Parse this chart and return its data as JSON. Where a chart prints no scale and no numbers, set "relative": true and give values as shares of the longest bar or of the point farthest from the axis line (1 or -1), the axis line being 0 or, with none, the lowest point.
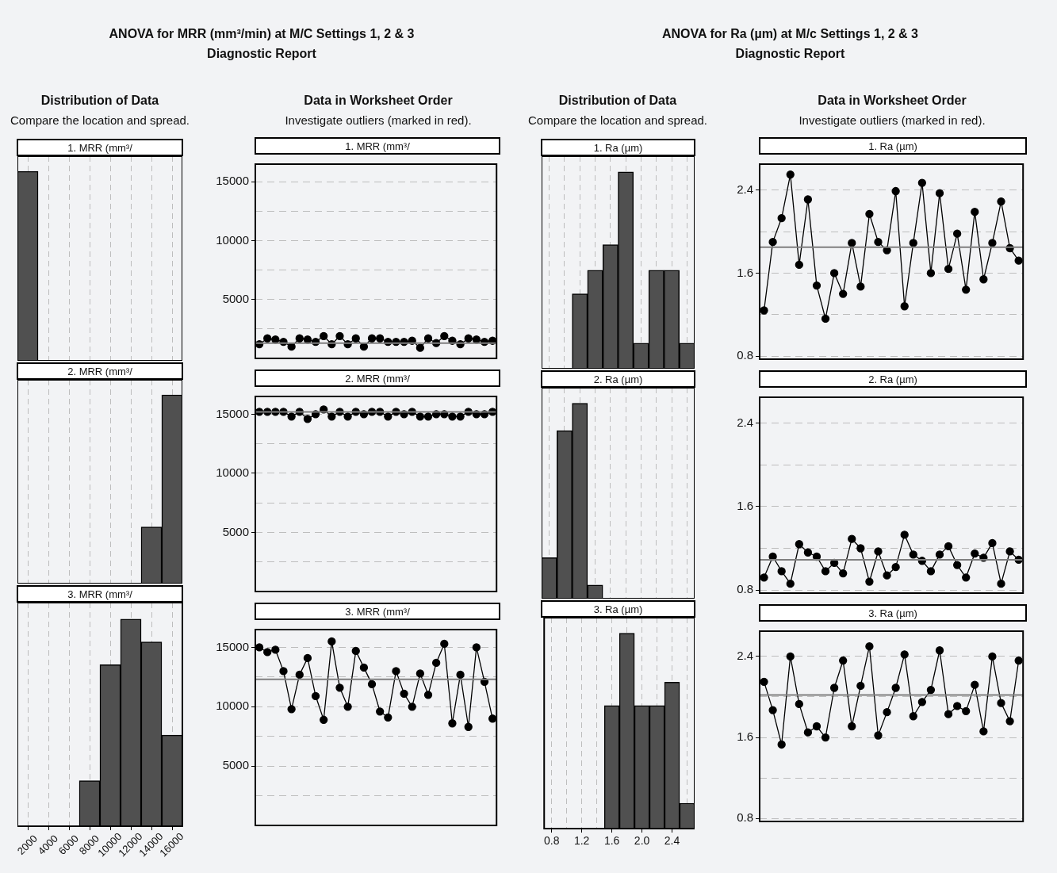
{
  "chart_data": [
    {
      "type": "other",
      "title": "ANOVA for MRR (mm³/min) at M/C Settings 1, 2 & 3",
      "subtitle": "Diagnostic Report",
      "annotations": [
        "Distribution of Data",
        "Compare the location and spread.",
        "Data in Worksheet Order",
        "Investigate outliers (marked in red)."
      ]
    },
    {
      "type": "other",
      "title": "ANOVA for Ra (µm) at M/c Settings 1, 2 & 3",
      "subtitle": "Diagnostic Report",
      "annotations": [
        "Distribution of Data",
        "Compare the location and spread.",
        "Data in Worksheet Order",
        "Investigate outliers (marked in red)."
      ]
    },
    {
      "type": "bar",
      "title": "1. MRR (mm³/",
      "relative": true,
      "color": "#505050",
      "grid": "x",
      "tick_labels": false,
      "categories": [
        "2000",
        "4000",
        "6000",
        "8000",
        "10000",
        "12000",
        "14000",
        "16000"
      ],
      "values": [
        1,
        0,
        0,
        0,
        0,
        0,
        0,
        0
      ]
    },
    {
      "type": "bar",
      "title": "2. MRR (mm³/",
      "relative": true,
      "color": "#505050",
      "grid": "x",
      "tick_labels": false,
      "categories": [
        "2000",
        "4000",
        "6000",
        "8000",
        "10000",
        "12000",
        "14000",
        "16000"
      ],
      "values": [
        0,
        0,
        0,
        0,
        0,
        0,
        0.3,
        1
      ]
    },
    {
      "type": "bar",
      "title": "3. MRR (mm³/",
      "relative": true,
      "color": "#505050",
      "grid": "x",
      "tick_labels": "x",
      "categories": [
        "2000",
        "4000",
        "6000",
        "8000",
        "10000",
        "12000",
        "14000",
        "16000"
      ],
      "values": [
        0,
        0,
        0,
        0.22,
        0.78,
        1,
        0.89,
        0.44
      ]
    },
    {
      "type": "line",
      "title": "1. MRR (mm³/",
      "color": "#000000",
      "marker": "circle",
      "line_style": "solid",
      "grid": "y",
      "tick_labels": "y",
      "ylim": [
        0,
        16500
      ],
      "yticks": [
        {
          "value": 2500,
          "label": null
        },
        5000,
        {
          "value": 7500,
          "label": null
        },
        10000,
        {
          "value": 12500,
          "label": null
        },
        15000
      ],
      "ref_lines": [
        {
          "axis": "y",
          "value": 1300,
          "color": "#7f7f7f"
        }
      ],
      "categories": [
        null,
        null,
        null,
        null,
        null,
        null,
        null,
        null,
        null,
        null,
        null,
        null,
        null,
        null,
        null,
        null,
        null,
        null,
        null,
        null,
        null,
        null,
        null,
        null,
        null,
        null,
        null,
        null,
        null,
        null
      ],
      "values": [
        1200,
        1700,
        1600,
        1400,
        1000,
        1700,
        1600,
        1400,
        1900,
        1200,
        1900,
        1200,
        1700,
        1000,
        1700,
        1700,
        1400,
        1400,
        1400,
        1500,
        900,
        1700,
        1300,
        1900,
        1500,
        1200,
        1700,
        1600,
        1400,
        1500
      ]
    },
    {
      "type": "line",
      "title": "2. MRR (mm³/",
      "color": "#000000",
      "marker": "circle",
      "line_style": "solid",
      "grid": "y",
      "tick_labels": "y",
      "ylim": [
        0,
        16500
      ],
      "yticks": [
        {
          "value": 2500,
          "label": null
        },
        5000,
        {
          "value": 7500,
          "label": null
        },
        10000,
        {
          "value": 12500,
          "label": null
        },
        15000
      ],
      "ref_lines": [
        {
          "axis": "y",
          "value": 15200,
          "color": "#7f7f7f"
        }
      ],
      "categories": [
        null,
        null,
        null,
        null,
        null,
        null,
        null,
        null,
        null,
        null,
        null,
        null,
        null,
        null,
        null,
        null,
        null,
        null,
        null,
        null,
        null,
        null,
        null,
        null,
        null,
        null,
        null,
        null,
        null,
        null
      ],
      "values": [
        15200,
        15200,
        15200,
        15200,
        14800,
        15200,
        14600,
        15000,
        15400,
        14800,
        15200,
        14800,
        15200,
        15000,
        15200,
        15200,
        14800,
        15200,
        15000,
        15200,
        14800,
        14800,
        15000,
        15000,
        14800,
        14800,
        15200,
        15000,
        15000,
        15200
      ]
    },
    {
      "type": "line",
      "title": "3. MRR (mm³/",
      "color": "#000000",
      "marker": "circle",
      "line_style": "solid",
      "grid": "y",
      "tick_labels": "y",
      "ylim": [
        0,
        16500
      ],
      "yticks": [
        {
          "value": 2500,
          "label": null
        },
        5000,
        {
          "value": 7500,
          "label": null
        },
        10000,
        {
          "value": 12500,
          "label": null
        },
        15000
      ],
      "ref_lines": [
        {
          "axis": "y",
          "value": 12300,
          "color": "#7f7f7f"
        }
      ],
      "categories": [
        null,
        null,
        null,
        null,
        null,
        null,
        null,
        null,
        null,
        null,
        null,
        null,
        null,
        null,
        null,
        null,
        null,
        null,
        null,
        null,
        null,
        null,
        null,
        null,
        null,
        null,
        null,
        null,
        null,
        null
      ],
      "values": [
        15000,
        14600,
        14800,
        13000,
        9800,
        12700,
        14100,
        10900,
        8900,
        15500,
        11600,
        10000,
        14700,
        13300,
        11900,
        9600,
        9100,
        13000,
        11100,
        10000,
        12800,
        11000,
        13700,
        15300,
        8600,
        12700,
        8300,
        15000,
        12100,
        9000
      ]
    },
    {
      "type": "bar",
      "title": "1. Ra (µm)",
      "relative": true,
      "color": "#505050",
      "grid": "x",
      "tick_labels": false,
      "categories": [
        "0.8",
        null,
        "1.2",
        null,
        "1.6",
        null,
        "2.0",
        null,
        "2.4",
        null
      ],
      "values": [
        0,
        0,
        0.38,
        0.5,
        0.63,
        1,
        0.13,
        0.5,
        0.5,
        0.13
      ]
    },
    {
      "type": "bar",
      "title": "2. Ra (µm)",
      "relative": true,
      "color": "#505050",
      "grid": "x",
      "tick_labels": false,
      "categories": [
        "0.8",
        null,
        "1.2",
        null,
        "1.6",
        null,
        "2.0",
        null,
        "2.4",
        null
      ],
      "values": [
        0.21,
        0.86,
        1,
        0.07,
        0,
        0,
        0,
        0,
        0,
        0
      ]
    },
    {
      "type": "bar",
      "title": "3. Ra (µm)",
      "relative": true,
      "color": "#505050",
      "grid": "x",
      "tick_labels": "x",
      "categories": [
        "0.8",
        null,
        "1.2",
        null,
        "1.6",
        null,
        "2.0",
        null,
        "2.4",
        null
      ],
      "values": [
        0,
        0,
        0,
        0,
        0.63,
        1,
        0.63,
        0.63,
        0.75,
        0.13
      ]
    },
    {
      "type": "line",
      "title": "1. Ra (µm)",
      "color": "#000000",
      "marker": "circle",
      "line_style": "solid",
      "grid": "y",
      "tick_labels": "y",
      "ylim": [
        0.77,
        2.65
      ],
      "yticks": [
        0.8,
        {
          "value": 1.2,
          "label": null
        },
        1.6,
        {
          "value": 2,
          "label": null
        },
        2.4
      ],
      "ref_lines": [
        {
          "axis": "y",
          "value": 1.85,
          "color": "#7f7f7f"
        }
      ],
      "categories": [
        null,
        null,
        null,
        null,
        null,
        null,
        null,
        null,
        null,
        null,
        null,
        null,
        null,
        null,
        null,
        null,
        null,
        null,
        null,
        null,
        null,
        null,
        null,
        null,
        null,
        null,
        null,
        null,
        null,
        null
      ],
      "values": [
        1.24,
        1.9,
        2.13,
        2.55,
        1.68,
        2.31,
        1.48,
        1.16,
        1.6,
        1.4,
        1.89,
        1.47,
        2.17,
        1.9,
        1.82,
        2.39,
        1.28,
        1.89,
        2.47,
        1.6,
        2.37,
        1.64,
        1.98,
        1.44,
        2.19,
        1.54,
        1.89,
        2.29,
        1.84,
        1.72
      ]
    },
    {
      "type": "line",
      "title": "2. Ra (µm)",
      "color": "#000000",
      "marker": "circle",
      "line_style": "solid",
      "grid": "y",
      "tick_labels": "y",
      "ylim": [
        0.77,
        2.65
      ],
      "yticks": [
        0.8,
        {
          "value": 1.2,
          "label": null
        },
        1.6,
        {
          "value": 2,
          "label": null
        },
        2.4
      ],
      "ref_lines": [
        {
          "axis": "y",
          "value": 1.09,
          "color": "#7f7f7f"
        }
      ],
      "categories": [
        null,
        null,
        null,
        null,
        null,
        null,
        null,
        null,
        null,
        null,
        null,
        null,
        null,
        null,
        null,
        null,
        null,
        null,
        null,
        null,
        null,
        null,
        null,
        null,
        null,
        null,
        null,
        null,
        null,
        null
      ],
      "values": [
        0.92,
        1.12,
        0.98,
        0.86,
        1.24,
        1.16,
        1.12,
        0.98,
        1.06,
        0.96,
        1.29,
        1.2,
        0.88,
        1.17,
        0.94,
        1.02,
        1.33,
        1.14,
        1.08,
        0.98,
        1.14,
        1.22,
        1.04,
        0.92,
        1.15,
        1.11,
        1.25,
        0.86,
        1.17,
        1.09
      ]
    },
    {
      "type": "line",
      "title": "3. Ra (µm)",
      "color": "#000000",
      "marker": "circle",
      "line_style": "solid",
      "grid": "y",
      "tick_labels": "y",
      "ylim": [
        0.77,
        2.65
      ],
      "yticks": [
        0.8,
        {
          "value": 1.2,
          "label": null
        },
        1.6,
        {
          "value": 2,
          "label": null
        },
        2.4
      ],
      "ref_lines": [
        {
          "axis": "y",
          "value": 2.02,
          "color": "#7f7f7f"
        }
      ],
      "categories": [
        null,
        null,
        null,
        null,
        null,
        null,
        null,
        null,
        null,
        null,
        null,
        null,
        null,
        null,
        null,
        null,
        null,
        null,
        null,
        null,
        null,
        null,
        null,
        null,
        null,
        null,
        null,
        null,
        null,
        null
      ],
      "values": [
        2.15,
        1.87,
        1.53,
        2.4,
        1.93,
        1.65,
        1.71,
        1.6,
        2.09,
        2.36,
        1.71,
        2.11,
        2.5,
        1.62,
        1.85,
        2.09,
        2.42,
        1.81,
        1.95,
        2.07,
        2.46,
        1.83,
        1.91,
        1.86,
        2.12,
        1.66,
        2.4,
        1.94,
        1.76,
        2.36
      ]
    }
  ]
}
